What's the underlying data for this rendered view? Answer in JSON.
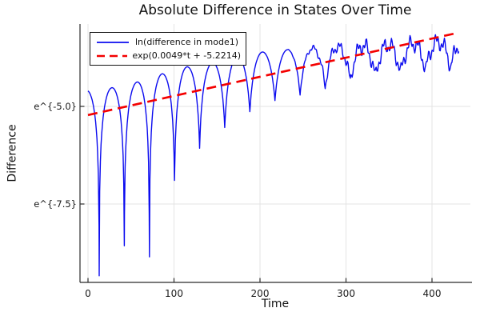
{
  "style": {
    "background": "#ffffff",
    "grid_color": "#e3e3e3",
    "axis_color": "#2b2b2b",
    "text_color": "#1a1a1a"
  },
  "chart_data": {
    "type": "line",
    "title": "Absolute Difference in States Over Time",
    "xlabel": "Time",
    "ylabel": "Difference",
    "grid": true,
    "legend_position": "top-left",
    "x_axis": {
      "range": [
        -9,
        445
      ],
      "ticks": [
        0,
        100,
        200,
        300,
        400
      ],
      "tick_labels": [
        "0",
        "100",
        "200",
        "300",
        "400"
      ]
    },
    "y_axis": {
      "scale": "ln",
      "range_ln": [
        -9.62,
        -2.88
      ],
      "ticks_ln": [
        -5.0,
        -7.5
      ],
      "tick_labels": [
        "e^{-5.0}",
        "e^{-7.5}"
      ]
    },
    "series": [
      {
        "name": "ln(difference in mode1)",
        "color": "#0b0bef",
        "style": "solid",
        "model": {
          "description": "ln|difference| = envelope(t) + ln((1-q)|sin(pi(t-first_cusp)/period)| + q), q = exp(-dip_depth(t)); growing high-frequency ripple after ripple_start",
          "t_start": 0,
          "t_end": 432,
          "first_cusp": 13,
          "period": 29.2,
          "floor_ln": -9.45,
          "envelope": [
            [
              0,
              -4.59
            ],
            [
              26,
              -4.53
            ],
            [
              55,
              -4.39
            ],
            [
              84,
              -4.18
            ],
            [
              111,
              -4.0
            ],
            [
              139,
              -3.91
            ],
            [
              170,
              -3.74
            ],
            [
              201,
              -3.61
            ],
            [
              230,
              -3.55
            ],
            [
              259,
              -3.5
            ],
            [
              290,
              -3.45
            ],
            [
              320,
              -3.41
            ],
            [
              350,
              -3.38
            ],
            [
              390,
              -3.33
            ],
            [
              432,
              -3.28
            ]
          ],
          "dip_depths": [
            [
              13,
              4.78
            ],
            [
              40,
              4.06
            ],
            [
              68,
              4.81
            ],
            [
              96,
              2.94
            ],
            [
              127,
              2.17
            ],
            [
              157,
              1.76
            ],
            [
              187,
              1.48
            ],
            [
              216,
              1.28
            ],
            [
              246,
              1.16
            ],
            [
              276,
              1.05
            ],
            [
              306,
              0.92
            ],
            [
              336,
              0.84
            ],
            [
              366,
              0.78
            ],
            [
              396,
              0.72
            ],
            [
              432,
              0.66
            ]
          ],
          "ripple_start": 230,
          "ripple_ramp": 90,
          "ripple": [
            {
              "a": 0.15,
              "w": 0.62,
              "p": 2.0
            },
            {
              "a": 0.1,
              "w": 1.73,
              "p": 0.7
            }
          ],
          "ripple_offset": -0.04
        }
      },
      {
        "name": "exp(0.0049*t + -5.2214)",
        "color": "#f40000",
        "style": "dashed",
        "slope": 0.0049,
        "intercept": -5.2214,
        "t_start": 0,
        "t_end": 430
      }
    ]
  }
}
